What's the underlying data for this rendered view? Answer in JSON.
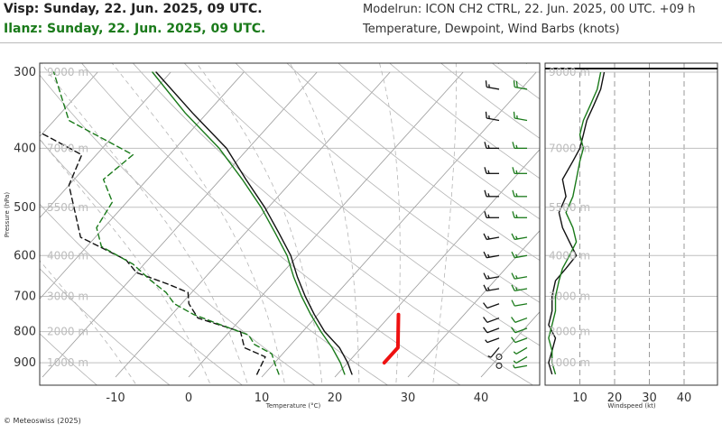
{
  "header": {
    "station1": "Visp: Sunday, 22. Jun. 2025, 09 UTC.",
    "station2": "Ilanz: Sunday, 22. Jun. 2025, 09 UTC.",
    "modelrun": "Modelrun: ICON CH2 CTRL, 22. Jun. 2025, 00 UTC. +09 h",
    "description": "Temperature, Dewpoint, Wind Barbs (knots)"
  },
  "copyright": "© Meteoswiss (2025)",
  "colors": {
    "station1": "#111111",
    "station2": "#1a7a1a",
    "parcel": "#ee1111"
  },
  "chart_data": [
    {
      "type": "line",
      "subtype": "skew-t log-p",
      "xlabel": "Temperature (°C)",
      "ylabel": "Pressure (hPa)",
      "xticks": [
        -10,
        0,
        10,
        20,
        30,
        40
      ],
      "yticks": [
        300,
        400,
        500,
        600,
        700,
        800,
        900
      ],
      "height_labels": [
        "9000 m",
        "7000 m",
        "5500 m",
        "4000 m",
        "3000 m",
        "2000 m",
        "1000 m"
      ],
      "height_pressures": [
        300,
        400,
        500,
        600,
        700,
        800,
        900
      ],
      "series": [
        {
          "name": "Visp: Sunday, 22. Jun. 2025, 09 UTC.",
          "kind": "temperature",
          "style": "solid",
          "points": [
            [
              940,
              22.0
            ],
            [
              930,
              21.5
            ],
            [
              900,
              20.0
            ],
            [
              850,
              17.0
            ],
            [
              800,
              13.0
            ],
            [
              750,
              9.5
            ],
            [
              700,
              6.0
            ],
            [
              650,
              2.5
            ],
            [
              600,
              -1.0
            ],
            [
              550,
              -5.5
            ],
            [
              500,
              -10.5
            ],
            [
              450,
              -16.5
            ],
            [
              400,
              -23.0
            ],
            [
              350,
              -32.0
            ],
            [
              300,
              -42.0
            ]
          ]
        },
        {
          "name": "Visp: Sunday, 22. Jun. 2025, 09 UTC.",
          "kind": "dewpoint",
          "style": "dashed",
          "points": [
            [
              940,
              9.0
            ],
            [
              910,
              8.5
            ],
            [
              880,
              8.0
            ],
            [
              850,
              4.0
            ],
            [
              800,
              1.5
            ],
            [
              760,
              -6.0
            ],
            [
              720,
              -9.0
            ],
            [
              690,
              -10.5
            ],
            [
              670,
              -14.0
            ],
            [
              640,
              -20.0
            ],
            [
              610,
              -23.0
            ],
            [
              560,
              -32.0
            ],
            [
              520,
              -35.0
            ],
            [
              460,
              -40.0
            ],
            [
              410,
              -42.0
            ],
            [
              360,
              -55.0
            ],
            [
              300,
              -63.0
            ]
          ]
        },
        {
          "name": "Ilanz: Sunday, 22. Jun. 2025, 09 UTC.",
          "kind": "temperature",
          "style": "solid",
          "points": [
            [
              940,
              21.0
            ],
            [
              930,
              20.5
            ],
            [
              900,
              19.0
            ],
            [
              850,
              16.0
            ],
            [
              800,
              12.5
            ],
            [
              750,
              9.0
            ],
            [
              700,
              5.5
            ],
            [
              650,
              2.0
            ],
            [
              600,
              -1.5
            ],
            [
              550,
              -6.0
            ],
            [
              500,
              -11.0
            ],
            [
              450,
              -17.0
            ],
            [
              400,
              -24.0
            ],
            [
              350,
              -33.0
            ],
            [
              300,
              -42.5
            ]
          ]
        },
        {
          "name": "Ilanz: Sunday, 22. Jun. 2025, 09 UTC.",
          "kind": "dewpoint",
          "style": "dashed",
          "points": [
            [
              940,
              12.0
            ],
            [
              920,
              11.0
            ],
            [
              900,
              10.0
            ],
            [
              870,
              8.5
            ],
            [
              840,
              5.0
            ],
            [
              810,
              3.0
            ],
            [
              780,
              -2.0
            ],
            [
              750,
              -7.0
            ],
            [
              720,
              -11.0
            ],
            [
              690,
              -13.5
            ],
            [
              660,
              -17.0
            ],
            [
              620,
              -21.5
            ],
            [
              580,
              -28.0
            ],
            [
              540,
              -31.0
            ],
            [
              490,
              -32.0
            ],
            [
              450,
              -36.0
            ],
            [
              410,
              -35.0
            ],
            [
              360,
              -48.0
            ],
            [
              300,
              -56.0
            ]
          ]
        },
        {
          "name": "",
          "kind": "parcel",
          "style": "thick",
          "points": [
            [
              900,
              25.0
            ],
            [
              870,
              25.0
            ],
            [
              850,
              25.0
            ],
            [
              750,
              21.0
            ]
          ]
        }
      ],
      "wind_profiles": [
        {
          "station": "Visp",
          "barbs": [
            [
              910,
              0,
              270
            ],
            [
              880,
              0,
              200
            ],
            [
              850,
              5,
              220
            ],
            [
              820,
              5,
              250
            ],
            [
              790,
              10,
              250
            ],
            [
              760,
              10,
              250
            ],
            [
              720,
              10,
              250
            ],
            [
              680,
              15,
              260
            ],
            [
              650,
              15,
              260
            ],
            [
              600,
              15,
              260
            ],
            [
              560,
              15,
              260
            ],
            [
              520,
              15,
              270
            ],
            [
              480,
              15,
              270
            ],
            [
              440,
              15,
              270
            ],
            [
              400,
              15,
              270
            ],
            [
              360,
              15,
              280
            ],
            [
              320,
              15,
              280
            ],
            [
              290,
              15,
              280
            ]
          ]
        },
        {
          "station": "Ilanz",
          "barbs": [
            [
              910,
              5,
              260
            ],
            [
              880,
              5,
              240
            ],
            [
              850,
              5,
              240
            ],
            [
              820,
              10,
              250
            ],
            [
              790,
              10,
              250
            ],
            [
              760,
              10,
              250
            ],
            [
              720,
              10,
              260
            ],
            [
              680,
              15,
              260
            ],
            [
              650,
              15,
              260
            ],
            [
              600,
              15,
              260
            ],
            [
              560,
              15,
              260
            ],
            [
              520,
              15,
              270
            ],
            [
              480,
              15,
              270
            ],
            [
              440,
              15,
              270
            ],
            [
              400,
              15,
              270
            ],
            [
              360,
              15,
              280
            ],
            [
              320,
              20,
              280
            ],
            [
              290,
              20,
              280
            ]
          ]
        }
      ]
    },
    {
      "type": "line",
      "subtype": "wind speed profile",
      "xlabel": "Windspeed (kt)",
      "xticks": [
        10,
        20,
        30,
        40
      ],
      "height_labels": [
        "9000 m",
        "7000 m",
        "5500 m",
        "4000 m",
        "3000 m",
        "2000 m",
        "1000 m"
      ],
      "series": [
        {
          "name": "Visp: Sunday, 22. Jun. 2025, 09 UTC.",
          "points": [
            [
              940,
              2
            ],
            [
              900,
              1
            ],
            [
              860,
              2
            ],
            [
              820,
              3
            ],
            [
              780,
              1
            ],
            [
              740,
              2
            ],
            [
              700,
              2
            ],
            [
              660,
              3
            ],
            [
              630,
              6
            ],
            [
              600,
              9
            ],
            [
              570,
              7
            ],
            [
              540,
              5
            ],
            [
              510,
              4
            ],
            [
              480,
              6
            ],
            [
              450,
              5
            ],
            [
              420,
              8
            ],
            [
              400,
              10
            ],
            [
              380,
              11
            ],
            [
              360,
              12
            ],
            [
              340,
              14
            ],
            [
              320,
              16
            ],
            [
              300,
              17
            ]
          ]
        },
        {
          "name": "Ilanz: Sunday, 22. Jun. 2025, 09 UTC.",
          "points": [
            [
              940,
              3
            ],
            [
              900,
              2
            ],
            [
              860,
              2
            ],
            [
              820,
              1
            ],
            [
              780,
              2
            ],
            [
              740,
              3
            ],
            [
              700,
              3
            ],
            [
              660,
              4
            ],
            [
              630,
              5
            ],
            [
              600,
              7
            ],
            [
              570,
              9
            ],
            [
              540,
              8
            ],
            [
              510,
              6
            ],
            [
              480,
              8
            ],
            [
              450,
              9
            ],
            [
              420,
              10
            ],
            [
              400,
              11
            ],
            [
              380,
              10
            ],
            [
              360,
              11
            ],
            [
              340,
              13
            ],
            [
              320,
              15
            ],
            [
              300,
              16
            ]
          ]
        }
      ]
    }
  ]
}
